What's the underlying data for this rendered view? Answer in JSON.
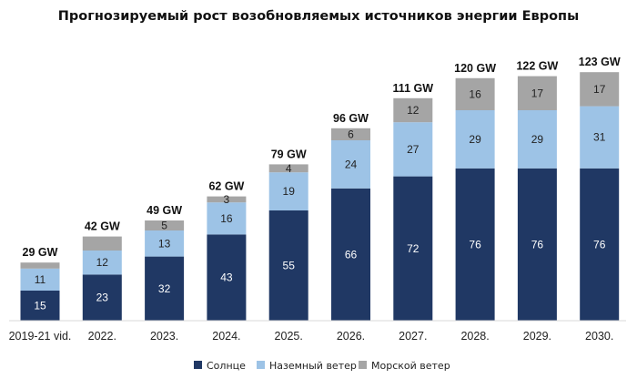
{
  "chart_data": {
    "type": "bar",
    "stacked": true,
    "title": "Прогнозируемый рост возобновляемых источников энергии Европы",
    "xlabel": "",
    "ylabel": "",
    "unit": "GW",
    "ylim": [
      0,
      130
    ],
    "grid": false,
    "legend_position": "bottom",
    "categories": [
      "2019-21 vid.",
      "2022.",
      "2023.",
      "2024.",
      "2025.",
      "2026.",
      "2027.",
      "2028.",
      "2029.",
      "2030."
    ],
    "totals": [
      "29 GW",
      "42 GW",
      "49 GW",
      "62 GW",
      "79 GW",
      "96 GW",
      "111 GW",
      "120 GW",
      "122 GW",
      "123 GW"
    ],
    "series": [
      {
        "name": "Солнце",
        "color": "#203864",
        "label_color": "#ffffff",
        "values": [
          15,
          23,
          32,
          43,
          55,
          66,
          72,
          76,
          76,
          76
        ],
        "show_labels": [
          true,
          true,
          true,
          true,
          true,
          true,
          true,
          true,
          true,
          true
        ]
      },
      {
        "name": "Наземный ветер",
        "color": "#9dc3e6",
        "label_color": "#222222",
        "values": [
          11,
          12,
          13,
          16,
          19,
          24,
          27,
          29,
          29,
          31
        ],
        "show_labels": [
          true,
          true,
          true,
          true,
          true,
          true,
          true,
          true,
          true,
          true
        ]
      },
      {
        "name": "Морской ветер",
        "color": "#a5a5a5",
        "label_color": "#222222",
        "values": [
          3,
          7,
          5,
          3,
          4,
          6,
          12,
          16,
          17,
          17
        ],
        "show_labels": [
          false,
          false,
          true,
          true,
          true,
          true,
          true,
          true,
          true,
          true
        ]
      }
    ]
  }
}
